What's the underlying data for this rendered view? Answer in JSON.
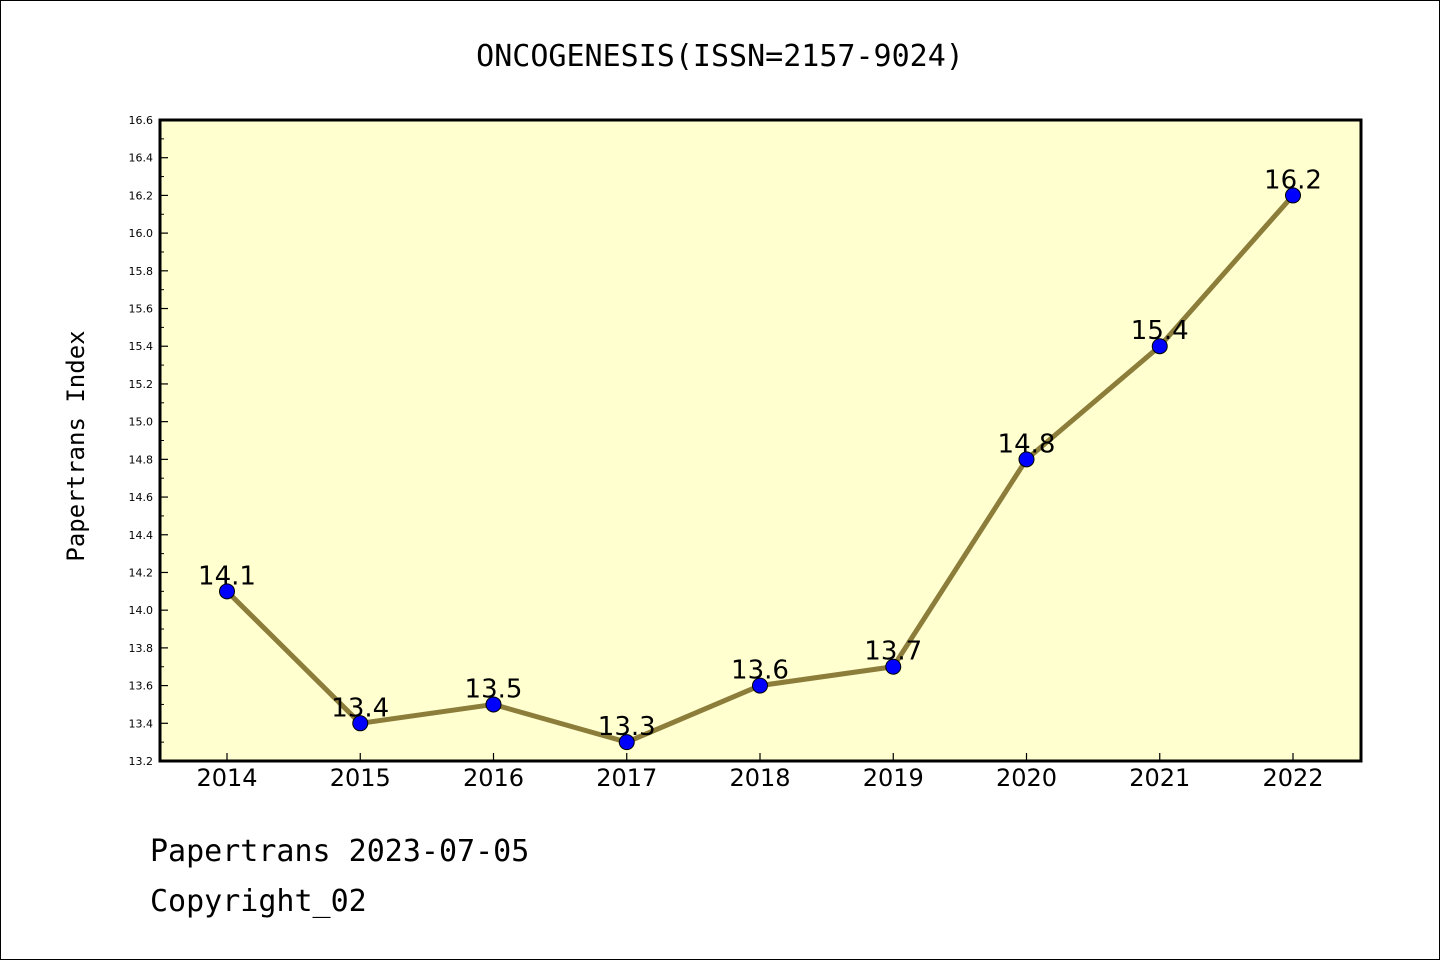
{
  "chart_data": {
    "type": "line",
    "title": "ONCOGENESIS(ISSN=2157-9024)",
    "xlabel": "",
    "ylabel": "Papertrans Index",
    "categories": [
      "2014",
      "2015",
      "2016",
      "2017",
      "2018",
      "2019",
      "2020",
      "2021",
      "2022"
    ],
    "values": [
      14.1,
      13.4,
      13.5,
      13.3,
      13.6,
      13.7,
      14.8,
      15.4,
      16.2
    ],
    "data_labels": [
      "14.1",
      "13.4",
      "13.5",
      "13.3",
      "13.6",
      "13.7",
      "14.8",
      "15.4",
      "16.2"
    ],
    "ylim": [
      13.2,
      16.6
    ],
    "yticks": [
      "13.2",
      "13.4",
      "13.6",
      "13.8",
      "14.0",
      "14.2",
      "14.4",
      "14.6",
      "14.8",
      "15.0",
      "15.2",
      "15.4",
      "15.6",
      "15.8",
      "16.0",
      "16.2",
      "16.4",
      "16.6"
    ],
    "grid": false,
    "colors": {
      "plot_background": "#ffffd0",
      "line": "#8c7d3a",
      "marker": "#0000ff"
    }
  },
  "footer": {
    "date_line": "Papertrans 2023-07-05",
    "copyright": "Copyright_02"
  }
}
